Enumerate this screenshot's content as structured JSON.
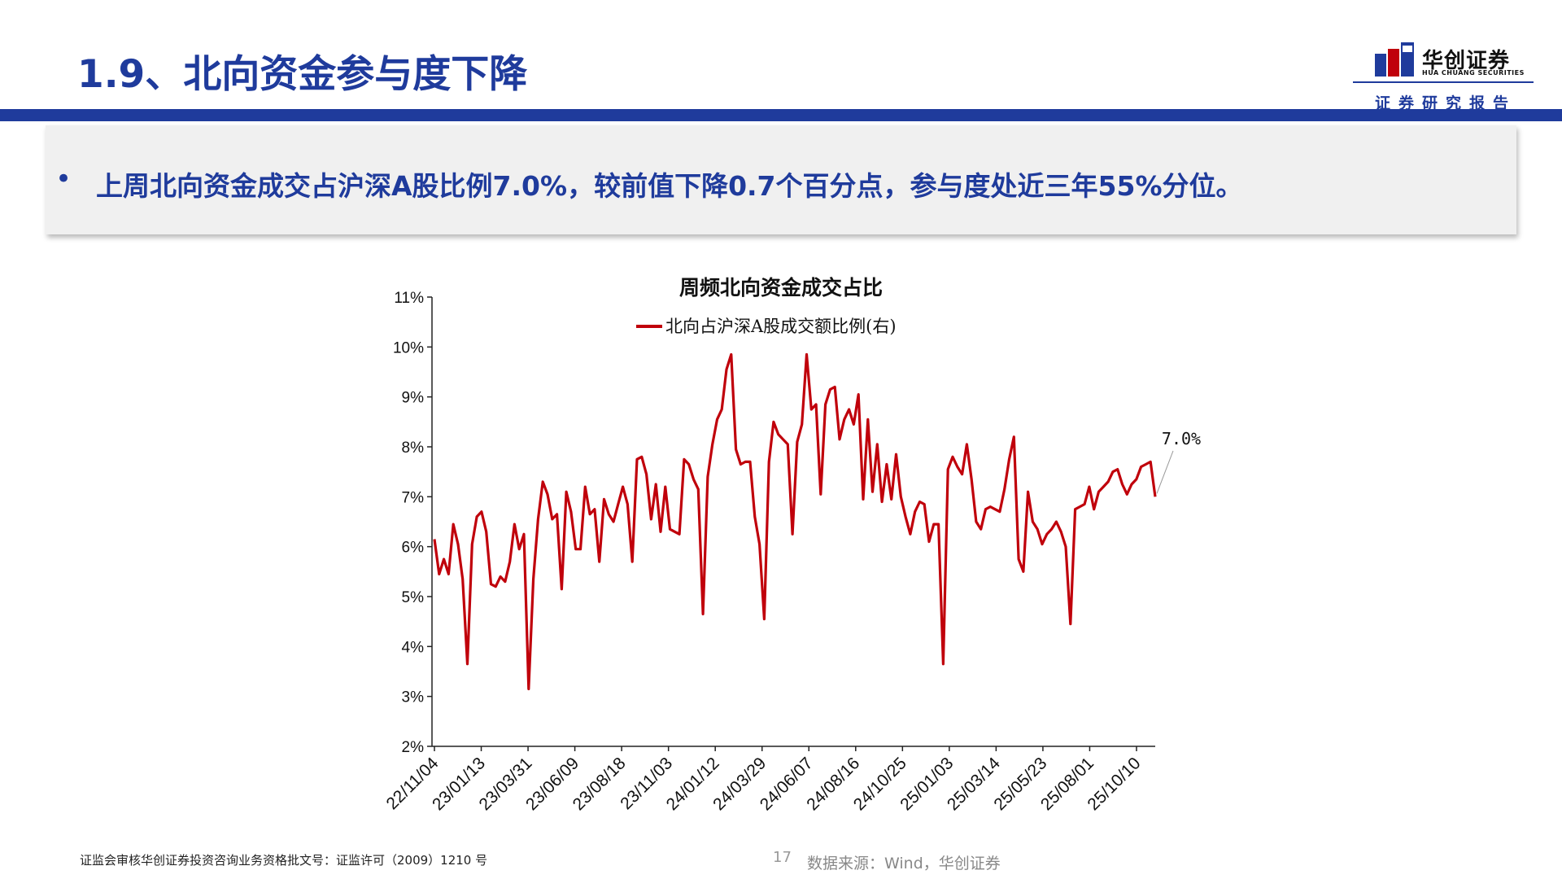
{
  "header": {
    "title": "1.9、北向资金参与度下降",
    "logo_cn": "华创证券",
    "logo_en": "HUA CHUANG SECURITIES",
    "report_label": "证券研究报告"
  },
  "bullet": {
    "dot": "•",
    "text": "上周北向资金成交占沪深A股比例7.0%，较前值下降0.7个百分点，参与度处近三年55%分位。"
  },
  "chart_data": {
    "type": "line",
    "title": "周频北向资金成交占比",
    "series": [
      {
        "name": "北向占沪深A股成交额比例(右)",
        "color": "#c0000b",
        "values": [
          6.15,
          5.45,
          5.75,
          5.45,
          6.45,
          6.05,
          5.35,
          3.65,
          6.05,
          6.6,
          6.7,
          6.3,
          5.25,
          5.2,
          5.4,
          5.3,
          5.7,
          6.45,
          5.95,
          6.25,
          3.15,
          5.35,
          6.55,
          7.3,
          7.05,
          6.55,
          6.65,
          5.15,
          7.1,
          6.7,
          5.95,
          5.95,
          7.2,
          6.65,
          6.75,
          5.7,
          6.95,
          6.65,
          6.5,
          6.85,
          7.2,
          6.85,
          5.7,
          7.75,
          7.8,
          7.45,
          6.55,
          7.25,
          6.3,
          7.2,
          6.35,
          6.3,
          6.25,
          7.75,
          7.65,
          7.35,
          7.15,
          4.65,
          7.4,
          8.05,
          8.55,
          8.75,
          9.55,
          9.85,
          7.95,
          7.65,
          7.7,
          7.7,
          6.6,
          6.05,
          4.55,
          7.7,
          8.5,
          8.25,
          8.15,
          8.05,
          6.25,
          8.1,
          8.45,
          9.85,
          8.75,
          8.85,
          7.05,
          8.85,
          9.15,
          9.2,
          8.15,
          8.55,
          8.75,
          8.45,
          9.05,
          6.95,
          8.55,
          7.1,
          8.05,
          6.9,
          7.65,
          6.95,
          7.85,
          7.0,
          6.6,
          6.25,
          6.7,
          6.9,
          6.85,
          6.1,
          6.45,
          6.45,
          3.65,
          7.55,
          7.8,
          7.6,
          7.45,
          8.05,
          7.35,
          6.5,
          6.35,
          6.75,
          6.8,
          6.75,
          6.7,
          7.15,
          7.75,
          8.2,
          5.75,
          5.5,
          7.1,
          6.5,
          6.35,
          6.05,
          6.25,
          6.35,
          6.5,
          6.3,
          6.0,
          4.45,
          6.75,
          6.8,
          6.85,
          7.2,
          6.75,
          7.1,
          7.2,
          7.3,
          7.5,
          7.55,
          7.25,
          7.05,
          7.25,
          7.35,
          7.6,
          7.65,
          7.7,
          7.0
        ]
      }
    ],
    "x_tick_labels": [
      "22/11/04",
      "23/01/13",
      "23/03/31",
      "23/06/09",
      "23/08/18",
      "23/11/03",
      "24/01/12",
      "24/03/29",
      "24/06/07",
      "24/08/16",
      "24/10/25",
      "25/01/03",
      "25/03/14",
      "25/05/23",
      "25/08/01",
      "25/10/10"
    ],
    "y_tick_labels": [
      "2%",
      "3%",
      "4%",
      "5%",
      "6%",
      "7%",
      "8%",
      "9%",
      "10%",
      "11%"
    ],
    "ylim": [
      2,
      11
    ],
    "last_value_label": "7.0%",
    "legend_position": "top-center",
    "grid": false
  },
  "footer": {
    "license": "证监会审核华创证券投资咨询业务资格批文号：证监许可（2009）1210 号",
    "page": "17",
    "source": "数据来源：Wind，华创证券"
  }
}
